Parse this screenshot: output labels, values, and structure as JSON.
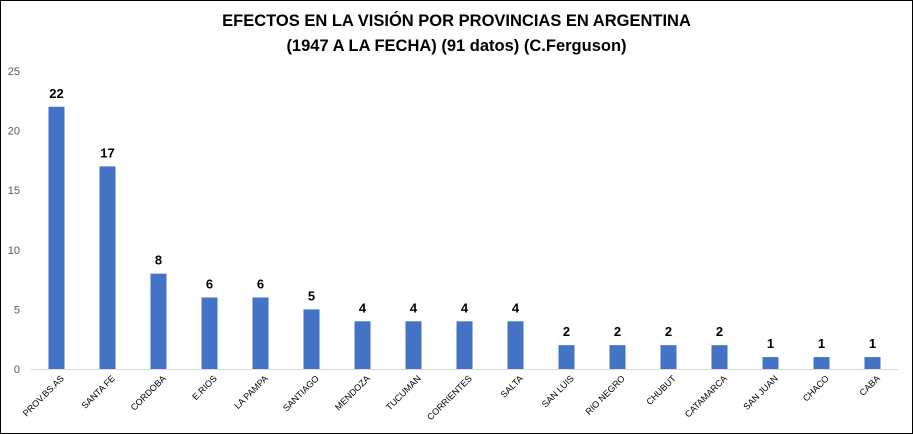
{
  "chart_data": {
    "type": "bar",
    "title": "EFECTOS EN LA VISIÓN POR PROVINCIAS EN ARGENTINA",
    "subtitle": "(1947 A LA FECHA) (91 datos) (C.Ferguson)",
    "categories": [
      "PROV.BS.AS",
      "SANTA FE",
      "CORDOBA",
      "E.RIOS",
      "LA PAMPA",
      "SANTIAGO",
      "MENDOZA",
      "TUCUMAN",
      "CORRIENTES",
      "SALTA",
      "SAN LUIS",
      "RIO NEGRO",
      "CHUBUT",
      "CATAMARCA",
      "SAN JUAN",
      "CHACO",
      "CABA"
    ],
    "values": [
      22,
      17,
      8,
      6,
      6,
      5,
      4,
      4,
      4,
      4,
      2,
      2,
      2,
      2,
      1,
      1,
      1
    ],
    "data_labels": [
      "22",
      "17",
      "8",
      "6",
      "6",
      "5",
      "4",
      "4",
      "4",
      "4",
      "2",
      "2",
      "2",
      "2",
      "1",
      "1",
      "1"
    ],
    "y_ticks": [
      "0",
      "5",
      "10",
      "15",
      "20",
      "25"
    ],
    "ylim": [
      0,
      25
    ],
    "xlabel": "",
    "ylabel": "",
    "grid": false,
    "legend": "none",
    "bar_color": "#4472C4"
  }
}
